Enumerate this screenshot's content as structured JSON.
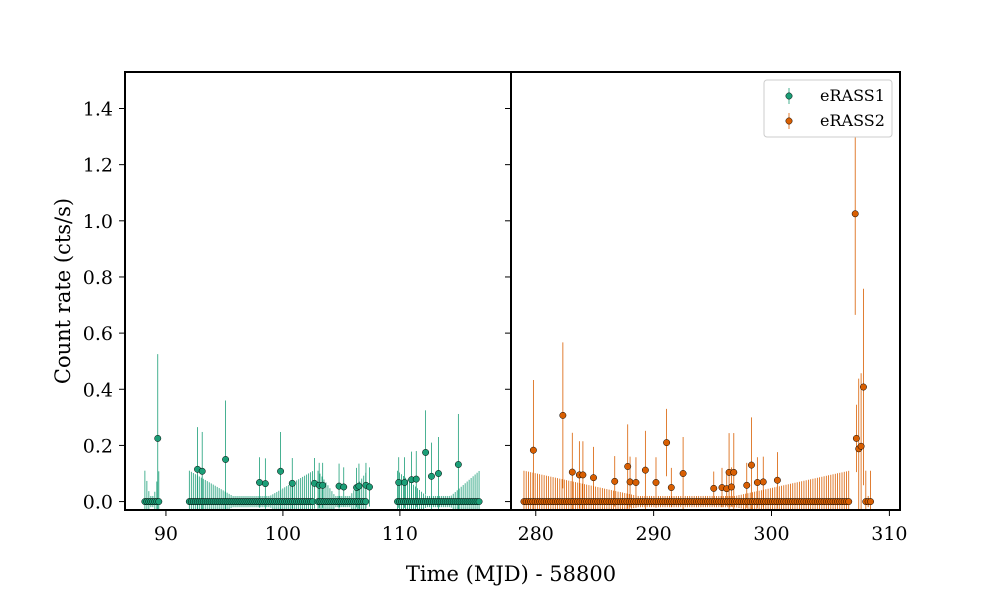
{
  "chart_data": {
    "type": "scatter",
    "ylabel": "Count rate (cts/s)",
    "xlabel": "Time (MJD) - 58800",
    "ylim": [
      -0.03,
      1.53
    ],
    "yticks": [
      "0.0",
      "0.2",
      "0.4",
      "0.6",
      "0.8",
      "1.0",
      "1.2",
      "1.4"
    ],
    "grid": false,
    "legend_position": "top-right",
    "colors": {
      "eRASS1": "#1b9e77",
      "eRASS2": "#d95f02"
    },
    "panels": [
      {
        "name": "left",
        "xlim": [
          86.5,
          119.5
        ],
        "xticks": [
          "90",
          "100",
          "110"
        ],
        "series_name": "eRASS1",
        "zero_ranges": [
          {
            "start": 88.2,
            "end": 89.4,
            "step": 0.17
          },
          {
            "start": 92.0,
            "end": 102.6,
            "step": 0.17
          },
          {
            "start": 103.0,
            "end": 107.2,
            "step": 0.17
          },
          {
            "start": 109.8,
            "end": 116.8,
            "step": 0.17
          }
        ],
        "points": [
          {
            "x": 89.3,
            "y": 0.225,
            "err": 0.3
          },
          {
            "x": 92.7,
            "y": 0.115,
            "err": 0.15
          },
          {
            "x": 93.1,
            "y": 0.108,
            "err": 0.14
          },
          {
            "x": 95.1,
            "y": 0.15,
            "err": 0.21
          },
          {
            "x": 98.0,
            "y": 0.068,
            "err": 0.09
          },
          {
            "x": 98.5,
            "y": 0.064,
            "err": 0.09
          },
          {
            "x": 99.8,
            "y": 0.108,
            "err": 0.14
          },
          {
            "x": 100.8,
            "y": 0.065,
            "err": 0.09
          },
          {
            "x": 102.7,
            "y": 0.065,
            "err": 0.09
          },
          {
            "x": 103.1,
            "y": 0.058,
            "err": 0.08
          },
          {
            "x": 103.4,
            "y": 0.058,
            "err": 0.08
          },
          {
            "x": 104.8,
            "y": 0.055,
            "err": 0.08
          },
          {
            "x": 105.2,
            "y": 0.052,
            "err": 0.07
          },
          {
            "x": 106.3,
            "y": 0.05,
            "err": 0.07
          },
          {
            "x": 106.5,
            "y": 0.055,
            "err": 0.08
          },
          {
            "x": 107.1,
            "y": 0.058,
            "err": 0.08
          },
          {
            "x": 107.4,
            "y": 0.052,
            "err": 0.07
          },
          {
            "x": 109.9,
            "y": 0.068,
            "err": 0.09
          },
          {
            "x": 110.4,
            "y": 0.068,
            "err": 0.09
          },
          {
            "x": 111.0,
            "y": 0.078,
            "err": 0.1
          },
          {
            "x": 111.4,
            "y": 0.08,
            "err": 0.1
          },
          {
            "x": 112.2,
            "y": 0.175,
            "err": 0.15
          },
          {
            "x": 112.7,
            "y": 0.09,
            "err": 0.12
          },
          {
            "x": 113.3,
            "y": 0.1,
            "err": 0.13
          },
          {
            "x": 115.0,
            "y": 0.132,
            "err": 0.18
          }
        ]
      },
      {
        "name": "right",
        "xlim": [
          277.9,
          310.9
        ],
        "xticks": [
          "280",
          "290",
          "300",
          "310"
        ],
        "series_name": "eRASS2",
        "zero_ranges": [
          {
            "start": 279.0,
            "end": 306.6,
            "step": 0.19
          },
          {
            "start": 308.0,
            "end": 308.4,
            "step": 0.2
          }
        ],
        "points": [
          {
            "x": 279.8,
            "y": 0.183,
            "err": 0.25
          },
          {
            "x": 282.3,
            "y": 0.307,
            "err": 0.26
          },
          {
            "x": 283.1,
            "y": 0.105,
            "err": 0.14
          },
          {
            "x": 283.7,
            "y": 0.095,
            "err": 0.12
          },
          {
            "x": 284.0,
            "y": 0.095,
            "err": 0.12
          },
          {
            "x": 284.9,
            "y": 0.085,
            "err": 0.11
          },
          {
            "x": 286.7,
            "y": 0.072,
            "err": 0.09
          },
          {
            "x": 287.8,
            "y": 0.125,
            "err": 0.15
          },
          {
            "x": 288.0,
            "y": 0.07,
            "err": 0.09
          },
          {
            "x": 288.5,
            "y": 0.068,
            "err": 0.09
          },
          {
            "x": 289.3,
            "y": 0.112,
            "err": 0.14
          },
          {
            "x": 290.2,
            "y": 0.068,
            "err": 0.09
          },
          {
            "x": 291.1,
            "y": 0.21,
            "err": 0.12
          },
          {
            "x": 291.5,
            "y": 0.05,
            "err": 0.07
          },
          {
            "x": 292.5,
            "y": 0.1,
            "err": 0.13
          },
          {
            "x": 295.1,
            "y": 0.047,
            "err": 0.06
          },
          {
            "x": 295.8,
            "y": 0.05,
            "err": 0.07
          },
          {
            "x": 296.2,
            "y": 0.046,
            "err": 0.06
          },
          {
            "x": 296.4,
            "y": 0.104,
            "err": 0.14
          },
          {
            "x": 296.6,
            "y": 0.052,
            "err": 0.07
          },
          {
            "x": 296.8,
            "y": 0.104,
            "err": 0.14
          },
          {
            "x": 297.9,
            "y": 0.058,
            "err": 0.08
          },
          {
            "x": 298.3,
            "y": 0.13,
            "err": 0.17
          },
          {
            "x": 298.8,
            "y": 0.068,
            "err": 0.09
          },
          {
            "x": 299.3,
            "y": 0.07,
            "err": 0.09
          },
          {
            "x": 300.5,
            "y": 0.076,
            "err": 0.1
          },
          {
            "x": 307.1,
            "y": 1.025,
            "err": 0.36
          },
          {
            "x": 307.2,
            "y": 0.225,
            "err": 0.12
          },
          {
            "x": 307.4,
            "y": 0.188,
            "err": 0.25
          },
          {
            "x": 307.6,
            "y": 0.197,
            "err": 0.26
          },
          {
            "x": 307.8,
            "y": 0.408,
            "err": 0.35
          }
        ]
      }
    ],
    "legend": [
      {
        "label": "eRASS1",
        "series": "eRASS1"
      },
      {
        "label": "eRASS2",
        "series": "eRASS2"
      }
    ]
  }
}
